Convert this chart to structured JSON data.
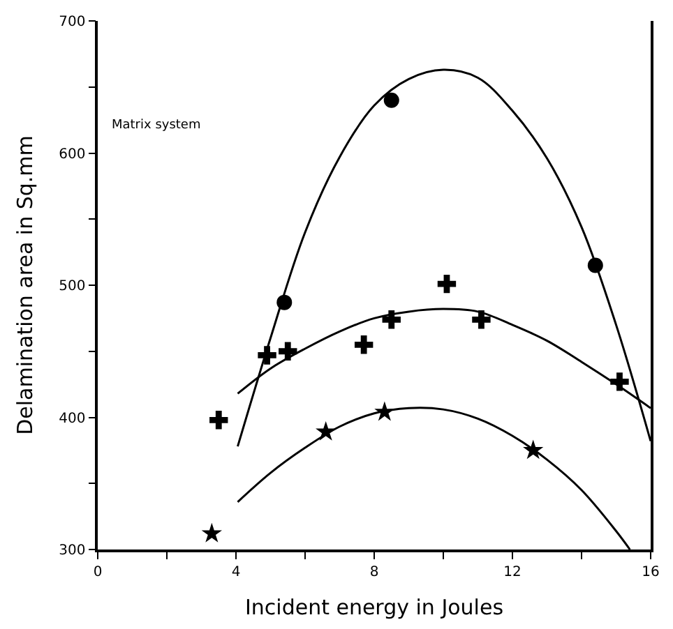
{
  "chart_data": {
    "type": "scatter",
    "xlabel": "Incident energy in Joules",
    "ylabel": "Delamination area in Sq.mm",
    "annotations": [
      "Matrix system"
    ],
    "xlim": [
      0,
      16
    ],
    "ylim": [
      300,
      700
    ],
    "xticks": [
      0,
      {
        "value": 2,
        "label": null
      },
      4,
      {
        "value": 6,
        "label": null
      },
      8,
      {
        "value": 10,
        "label": null
      },
      12,
      {
        "value": 14,
        "label": null
      },
      16
    ],
    "yticks": [
      300,
      {
        "value": 350,
        "label": null
      },
      400,
      {
        "value": 450,
        "label": null
      },
      500,
      {
        "value": 550,
        "label": null
      },
      600,
      {
        "value": 650,
        "label": null
      },
      700
    ],
    "series": [
      {
        "marker": "cross",
        "color": "#000000",
        "x": [
          3.5,
          4.9,
          5.5,
          7.7,
          8.5,
          10.1,
          11.1,
          15.1
        ],
        "values": [
          398,
          447,
          450,
          455,
          474,
          501,
          474,
          427
        ]
      },
      {
        "marker": "circle",
        "color": "#000000",
        "x": [
          5.4,
          8.5,
          14.4
        ],
        "values": [
          487,
          640,
          515
        ]
      },
      {
        "marker": "star",
        "color": "#000000",
        "x": [
          3.3,
          6.6,
          8.3,
          12.6
        ],
        "values": [
          312,
          389,
          404,
          375
        ]
      },
      {
        "type": "line",
        "marker": "none",
        "color": "#000000",
        "x": [
          4.05,
          5,
          6,
          7,
          8,
          9,
          10,
          11,
          12,
          13,
          14,
          15,
          16
        ],
        "values": [
          418,
          437,
          452,
          465,
          475,
          480,
          482,
          480,
          470,
          458,
          442,
          425,
          407
        ]
      },
      {
        "type": "line",
        "marker": "none",
        "color": "#000000",
        "x": [
          4.05,
          5,
          6,
          7,
          8,
          9,
          10,
          11,
          12,
          13,
          14,
          15,
          16
        ],
        "values": [
          378,
          460,
          540,
          597,
          636,
          656,
          663,
          657,
          632,
          596,
          544,
          470,
          382
        ]
      },
      {
        "type": "line",
        "marker": "none",
        "color": "#000000",
        "x": [
          4.05,
          5,
          6,
          7,
          8,
          9,
          10,
          11,
          12,
          13,
          14,
          15,
          15.4
        ],
        "values": [
          336,
          358,
          377,
          393,
          403,
          407,
          406,
          399,
          386,
          368,
          345,
          314,
          300
        ]
      }
    ]
  }
}
